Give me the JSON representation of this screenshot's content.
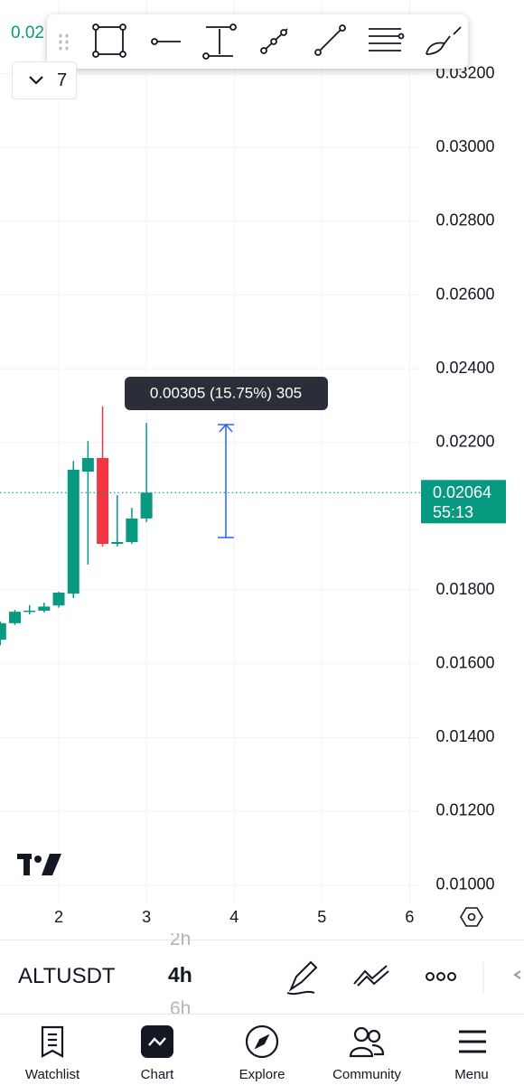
{
  "header": {
    "price_partial": "0.02",
    "indicator_count": "7"
  },
  "chart": {
    "type": "candlestick",
    "x": [
      1.333,
      1.5,
      1.667,
      1.833,
      2,
      2.167,
      2.333,
      2.5,
      2.667,
      2.833,
      3
    ],
    "open": [
      0.01665,
      0.0171,
      0.01741,
      0.01744,
      0.01758,
      0.0179,
      0.02121,
      0.02158,
      0.01925,
      0.0193,
      0.01994
    ],
    "high": [
      0.01715,
      0.01746,
      0.01759,
      0.01766,
      0.01795,
      0.0215,
      0.02204,
      0.02298,
      0.02057,
      0.02023,
      0.02253
    ],
    "low": [
      0.0165,
      0.01705,
      0.01734,
      0.01739,
      0.01752,
      0.01778,
      0.01869,
      0.01918,
      0.01918,
      0.01925,
      0.01984
    ],
    "close": [
      0.0171,
      0.01741,
      0.01744,
      0.01755,
      0.01793,
      0.02126,
      0.02158,
      0.01925,
      0.0193,
      0.01994,
      0.02064
    ],
    "up_color": "#089981",
    "down_color": "#f23645",
    "xlim": [
      1.33,
      6.12
    ],
    "xticks": [
      2,
      3,
      4,
      5,
      6
    ],
    "ylim": [
      0.0095,
      0.034
    ],
    "yticks": [
      {
        "value": 0.01,
        "label": "0.01000"
      },
      {
        "value": 0.012,
        "label": "0.01200"
      },
      {
        "value": 0.014,
        "label": "0.01400"
      },
      {
        "value": 0.016,
        "label": "0.01600"
      },
      {
        "value": 0.018,
        "label": "0.01800"
      },
      {
        "value": 0.022,
        "label": "0.02200"
      },
      {
        "value": 0.024,
        "label": "0.02400"
      },
      {
        "value": 0.026,
        "label": "0.02600"
      },
      {
        "value": 0.028,
        "label": "0.02800"
      },
      {
        "value": 0.03,
        "label": "0.03000"
      },
      {
        "value": 0.032,
        "label": "0.03200"
      }
    ],
    "grid": true,
    "last_price": 0.02064,
    "countdown": "55:13",
    "measure_label": "0.00305 (15.75%) 305"
  },
  "bottom_bar": {
    "symbol": "ALTUSDT",
    "intervals": [
      "2h",
      "4h",
      "6h"
    ]
  },
  "nav": [
    "Watchlist",
    "Chart",
    "Explore",
    "Community",
    "Menu"
  ]
}
